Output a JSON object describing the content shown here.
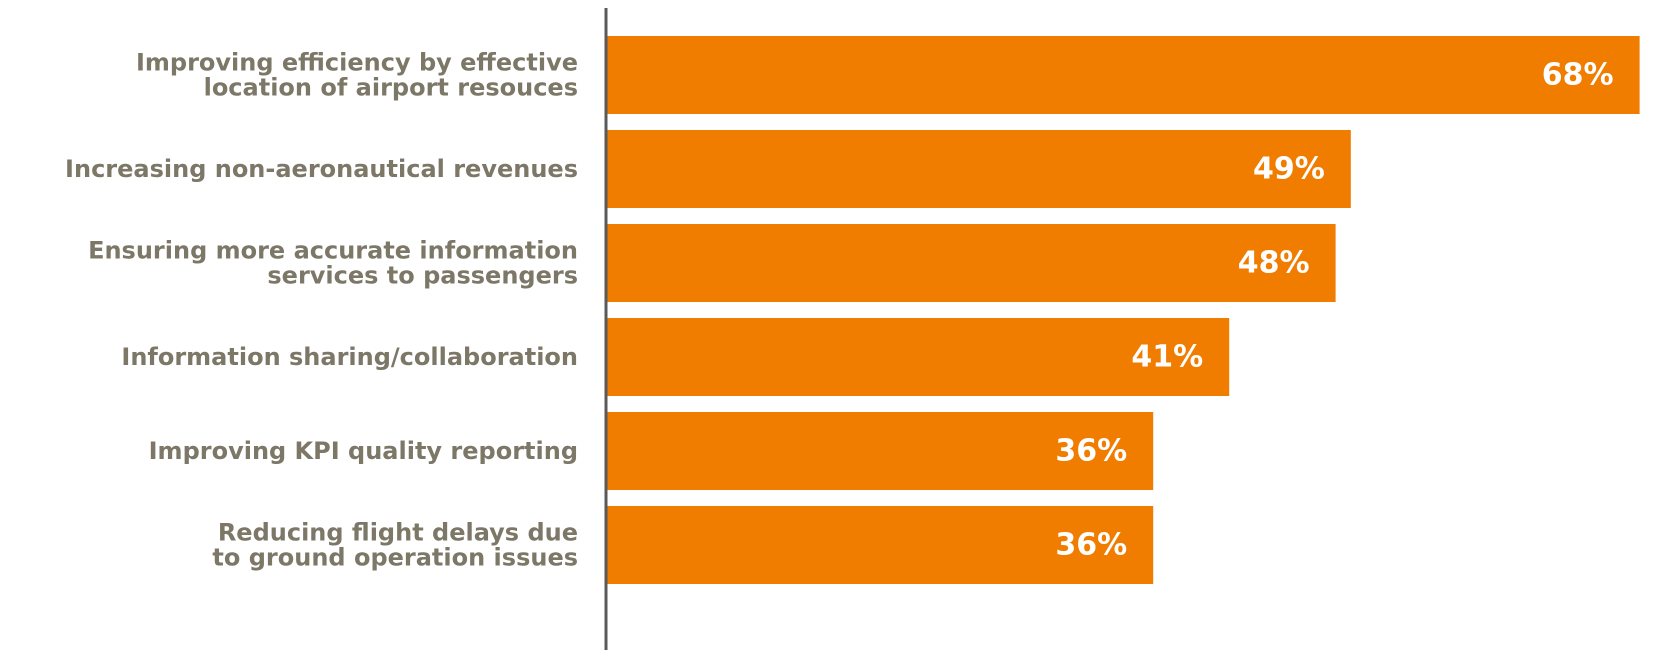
{
  "chart_data": {
    "type": "bar",
    "orientation": "horizontal",
    "categories": [
      [
        "Improving efficiency by effective",
        "location of airport resouces"
      ],
      [
        "Increasing non-aeronautical revenues"
      ],
      [
        "Ensuring more accurate information",
        "services to passengers"
      ],
      [
        "Information sharing/collaboration"
      ],
      [
        "Improving KPI quality reporting"
      ],
      [
        "Reducing flight delays due",
        "to ground operation issues"
      ]
    ],
    "values": [
      68,
      49,
      48,
      41,
      36,
      36
    ],
    "value_labels": [
      "68%",
      "49%",
      "48%",
      "41%",
      "36%",
      "36%"
    ],
    "xlim": [
      0,
      70
    ],
    "grid": false,
    "legend": "none",
    "title": "",
    "xlabel": "",
    "ylabel": ""
  },
  "colors": {
    "bar": "#f07c00",
    "bar_label": "#ffffff",
    "category_label": "#7c7767",
    "axis": "#5a5a5a"
  }
}
